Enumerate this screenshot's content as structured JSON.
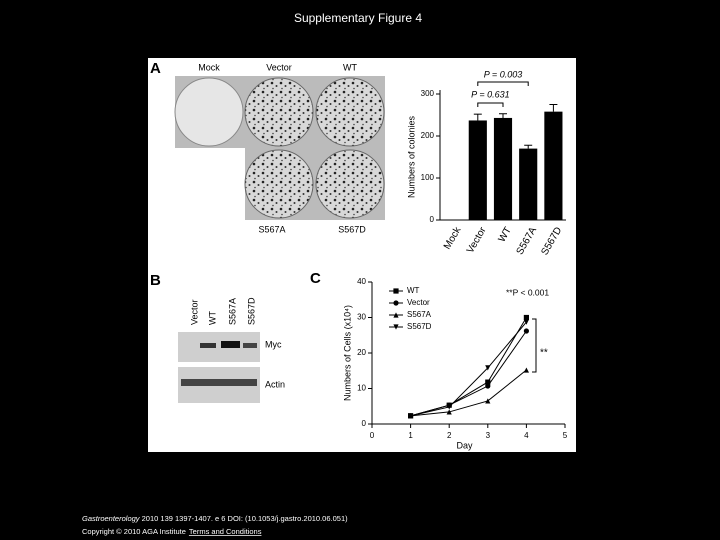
{
  "header": {
    "title": "Supplementary Figure 4"
  },
  "figure": {
    "panel_labels": [
      "A",
      "B",
      "C"
    ],
    "dish_labels": [
      "Mock",
      "Vector",
      "WT",
      "S567A",
      "S567D"
    ],
    "blot": {
      "lanes": [
        "Vector",
        "WT",
        "S567A",
        "S567D"
      ],
      "bands": [
        "Myc",
        "Actin"
      ]
    }
  },
  "chart_data": [
    {
      "type": "bar",
      "ylabel": "Numbers of colonies",
      "categories": [
        "Mock",
        "Vector",
        "WT",
        "S567A",
        "S567D"
      ],
      "values": [
        0,
        237,
        243,
        170,
        258
      ],
      "errors": [
        0,
        15,
        10,
        8,
        17
      ],
      "color": "#000000",
      "ylim": [
        0,
        300
      ],
      "yticks": [
        0,
        100,
        200,
        300
      ],
      "annotations": [
        "P = 0.003",
        "P = 0.631"
      ]
    },
    {
      "type": "line",
      "xlabel": "Day",
      "ylabel": "Numbers of Cells (x10⁴)",
      "x": [
        1,
        2,
        3,
        4
      ],
      "series": [
        {
          "name": "WT",
          "color": "#000000",
          "marker": "square",
          "values": [
            2.3,
            5.3,
            11.8,
            30
          ]
        },
        {
          "name": "Vector",
          "color": "#000000",
          "marker": "circle",
          "values": [
            2.3,
            5.3,
            10.7,
            26.2
          ]
        },
        {
          "name": "S567A",
          "color": "#000000",
          "marker": "triangle-up",
          "values": [
            2.3,
            3.4,
            6.5,
            15.2
          ]
        },
        {
          "name": "S567D",
          "color": "#000000",
          "marker": "triangle-down",
          "values": [
            2.3,
            4.8,
            15.8,
            28.7
          ]
        }
      ],
      "xlim": [
        0,
        5
      ],
      "xticks": [
        0,
        1,
        2,
        3,
        4,
        5
      ],
      "ylim": [
        0,
        40
      ],
      "yticks": [
        0,
        10,
        20,
        30,
        40
      ],
      "annotations": [
        "**P < 0.001",
        "**"
      ]
    }
  ],
  "footer": {
    "journal": "Gastroenterology",
    "citation": " 2010 139 1397-1407. e 6 DOI: (10.1053/j.gastro.2010.06.051)",
    "copyright": "Copyright © 2010 AGA Institute",
    "link": "Terms and Conditions"
  }
}
